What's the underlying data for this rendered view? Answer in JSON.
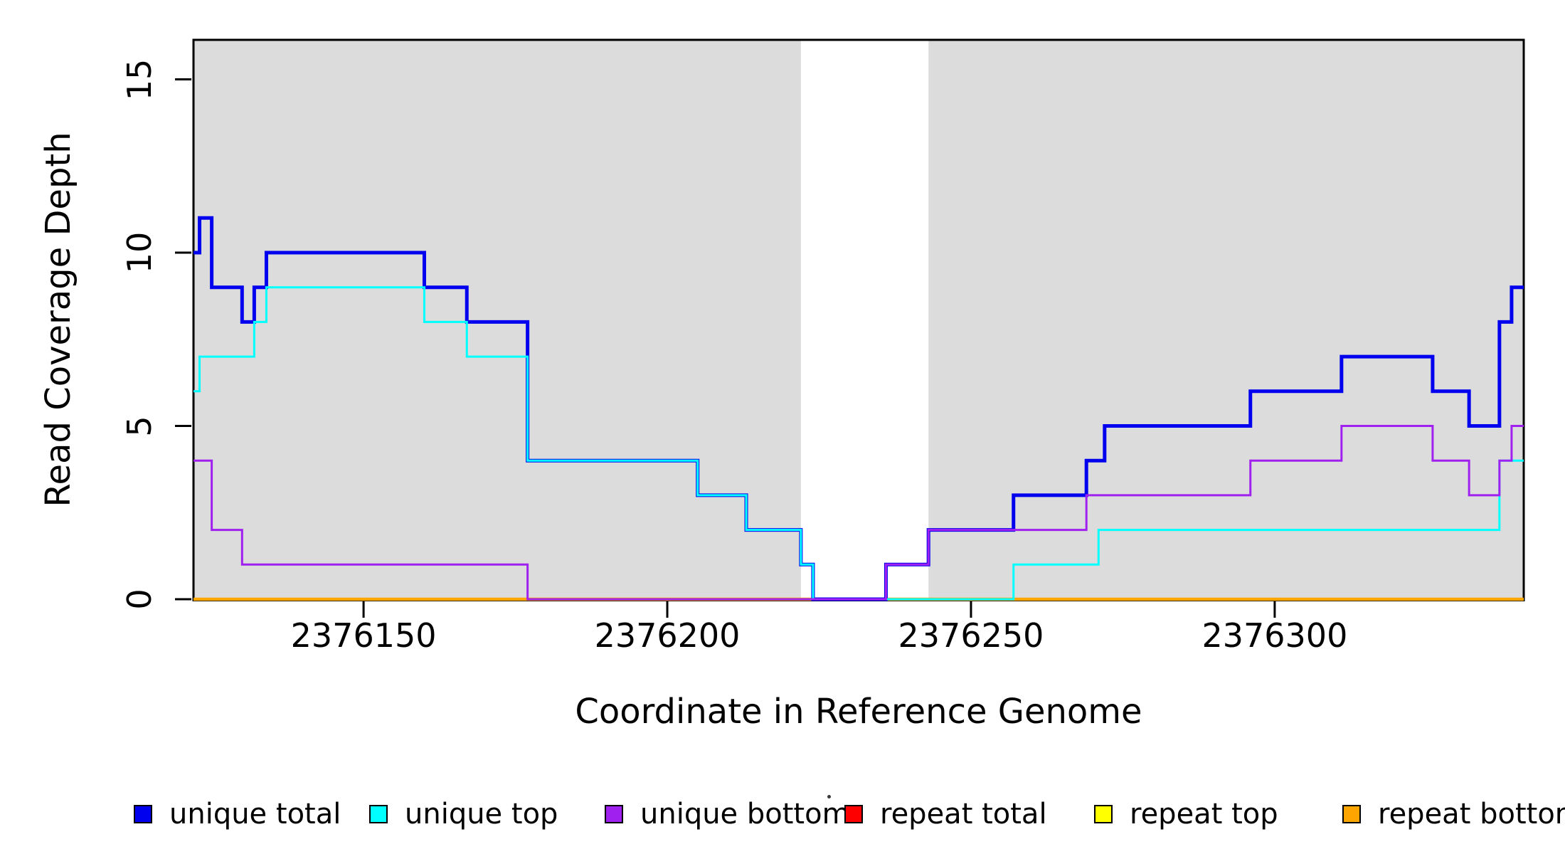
{
  "chart_data": {
    "type": "line",
    "subtype": "step",
    "title": "",
    "xlabel": "Coordinate in Reference Genome",
    "ylabel": "Read Coverage Depth",
    "xlim": [
      2376122,
      2376341
    ],
    "ylim": [
      0,
      16.14
    ],
    "x_ticks": [
      2376150,
      2376200,
      2376250,
      2376300
    ],
    "y_ticks": [
      0,
      5,
      10,
      15
    ],
    "grid": false,
    "legend_position": "bottom",
    "plot_band_color": "#DCDCDC",
    "background_bands": [
      {
        "from": 2376122,
        "to": 2376222,
        "color": "#DCDCDC"
      },
      {
        "from": 2376243,
        "to": 2376341,
        "color": "#DCDCDC"
      }
    ],
    "draw_order": [
      "repeat total",
      "repeat top",
      "repeat bottom",
      "unique total",
      "unique top",
      "unique bottom"
    ],
    "series": [
      {
        "name": "unique total",
        "color": "#0000EE",
        "width": 5,
        "steps": [
          [
            2376122,
            10
          ],
          [
            2376123,
            11
          ],
          [
            2376125,
            9
          ],
          [
            2376130,
            8
          ],
          [
            2376132,
            9
          ],
          [
            2376134,
            10
          ],
          [
            2376160,
            9
          ],
          [
            2376167,
            8
          ],
          [
            2376177,
            4
          ],
          [
            2376205,
            3
          ],
          [
            2376213,
            2
          ],
          [
            2376222,
            1
          ],
          [
            2376224,
            0
          ],
          [
            2376236,
            1
          ],
          [
            2376243,
            2
          ],
          [
            2376257,
            3
          ],
          [
            2376269,
            4
          ],
          [
            2376272,
            5
          ],
          [
            2376296,
            6
          ],
          [
            2376311,
            7
          ],
          [
            2376326,
            6
          ],
          [
            2376332,
            5
          ],
          [
            2376337,
            8
          ],
          [
            2376339,
            9
          ]
        ]
      },
      {
        "name": "unique top",
        "color": "#00FFFF",
        "width": 3,
        "steps": [
          [
            2376122,
            6
          ],
          [
            2376123,
            7
          ],
          [
            2376132,
            8
          ],
          [
            2376134,
            9
          ],
          [
            2376160,
            8
          ],
          [
            2376167,
            7
          ],
          [
            2376177,
            4
          ],
          [
            2376205,
            3
          ],
          [
            2376213,
            2
          ],
          [
            2376222,
            1
          ],
          [
            2376224,
            0
          ],
          [
            2376257,
            1
          ],
          [
            2376271,
            2
          ],
          [
            2376337,
            4
          ]
        ]
      },
      {
        "name": "unique bottom",
        "color": "#A020F0",
        "width": 3,
        "steps": [
          [
            2376122,
            4
          ],
          [
            2376125,
            2
          ],
          [
            2376130,
            1
          ],
          [
            2376177,
            0
          ],
          [
            2376236,
            1
          ],
          [
            2376243,
            2
          ],
          [
            2376269,
            3
          ],
          [
            2376296,
            4
          ],
          [
            2376311,
            5
          ],
          [
            2376326,
            4
          ],
          [
            2376332,
            3
          ],
          [
            2376337,
            4
          ],
          [
            2376339,
            5
          ]
        ]
      },
      {
        "name": "repeat total",
        "color": "#FF0000",
        "width": 3,
        "steps": [
          [
            2376122,
            0
          ]
        ]
      },
      {
        "name": "repeat top",
        "color": "#FFFF00",
        "width": 3,
        "steps": [
          [
            2376122,
            0
          ]
        ]
      },
      {
        "name": "repeat bottom",
        "color": "#FFA500",
        "width": 4.5,
        "steps": [
          [
            2376122,
            0
          ]
        ]
      }
    ]
  },
  "stray_mark_glyph": ""
}
